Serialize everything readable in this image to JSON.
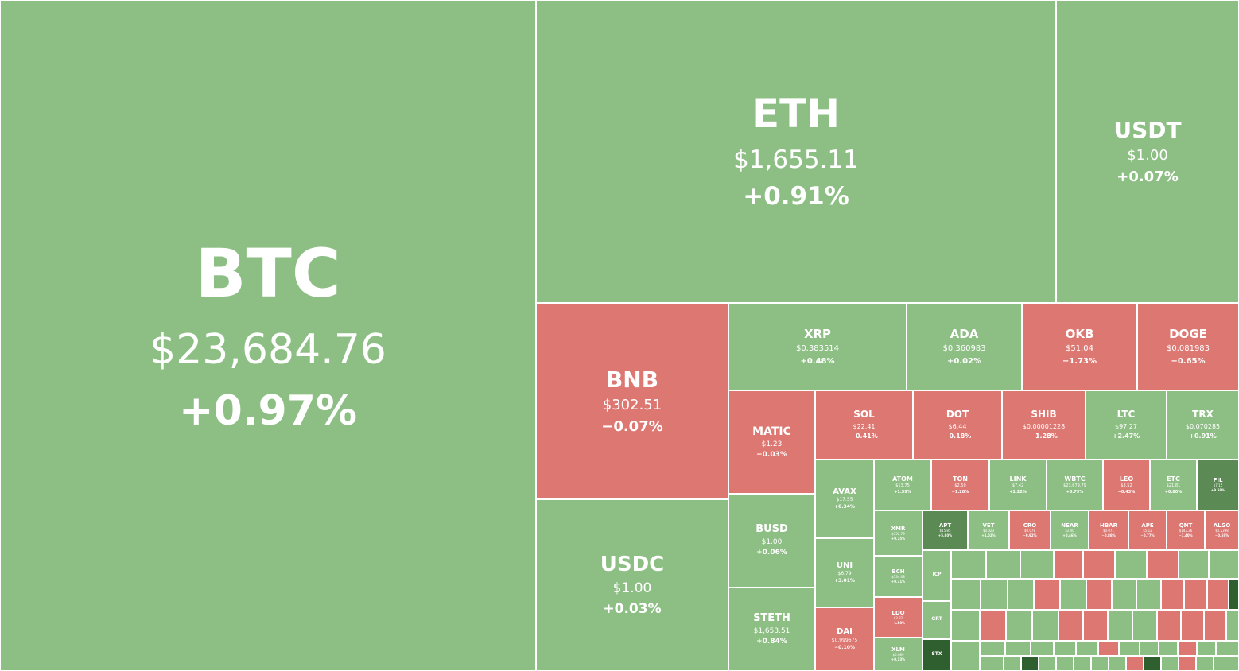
{
  "colors": {
    "up": "#8dbf84",
    "down": "#dd7772",
    "strong_up": "#5c8a55",
    "very_strong_up": "#2f5f2f"
  },
  "tiles": [
    {
      "symbol": "BTC",
      "price": "$23,684.76",
      "change": "+0.97%",
      "trend": "up"
    },
    {
      "symbol": "ETH",
      "price": "$1,655.11",
      "change": "+0.91%",
      "trend": "up"
    },
    {
      "symbol": "USDT",
      "price": "$1.00",
      "change": "+0.07%",
      "trend": "up"
    },
    {
      "symbol": "BNB",
      "price": "$302.51",
      "change": "−0.07%",
      "trend": "down"
    },
    {
      "symbol": "USDC",
      "price": "$1.00",
      "change": "+0.03%",
      "trend": "up"
    },
    {
      "symbol": "XRP",
      "price": "$0.383514",
      "change": "+0.48%",
      "trend": "up"
    },
    {
      "symbol": "ADA",
      "price": "$0.360983",
      "change": "+0.02%",
      "trend": "up"
    },
    {
      "symbol": "OKB",
      "price": "$51.04",
      "change": "−1.73%",
      "trend": "down"
    },
    {
      "symbol": "DOGE",
      "price": "$0.081983",
      "change": "−0.65%",
      "trend": "down"
    },
    {
      "symbol": "MATIC",
      "price": "$1.23",
      "change": "−0.03%",
      "trend": "down"
    },
    {
      "symbol": "SOL",
      "price": "$22.41",
      "change": "−0.41%",
      "trend": "down"
    },
    {
      "symbol": "DOT",
      "price": "$6.44",
      "change": "−0.18%",
      "trend": "down"
    },
    {
      "symbol": "SHIB",
      "price": "$0.00001228",
      "change": "−1.28%",
      "trend": "down"
    },
    {
      "symbol": "LTC",
      "price": "$97.27",
      "change": "+2.47%",
      "trend": "up"
    },
    {
      "symbol": "TRX",
      "price": "$0.070285",
      "change": "+0.91%",
      "trend": "up"
    },
    {
      "symbol": "BUSD",
      "price": "$1.00",
      "change": "+0.06%",
      "trend": "up"
    },
    {
      "symbol": "STETH",
      "price": "$1,653.51",
      "change": "+0.84%",
      "trend": "up"
    },
    {
      "symbol": "AVAX",
      "price": "$17.55",
      "change": "+0.34%",
      "trend": "up"
    },
    {
      "symbol": "UNI",
      "price": "$6.79",
      "change": "+3.01%",
      "trend": "up"
    },
    {
      "symbol": "DAI",
      "price": "$0.999675",
      "change": "−0.10%",
      "trend": "down"
    },
    {
      "symbol": "ATOM",
      "price": "$13.75",
      "change": "+1.59%",
      "trend": "up"
    },
    {
      "symbol": "TON",
      "price": "$2.50",
      "change": "−1.28%",
      "trend": "down"
    },
    {
      "symbol": "LINK",
      "price": "$7.42",
      "change": "+1.22%",
      "trend": "up"
    },
    {
      "symbol": "WBTC",
      "price": "$23,679.79",
      "change": "+0.79%",
      "trend": "up"
    },
    {
      "symbol": "LEO",
      "price": "$3.52",
      "change": "−0.43%",
      "trend": "down"
    },
    {
      "symbol": "ETC",
      "price": "$21.81",
      "change": "+0.80%",
      "trend": "up"
    },
    {
      "symbol": "FIL",
      "price": "$7.15",
      "change": "+9.58%",
      "trend": "strong_up"
    },
    {
      "symbol": "XMR",
      "price": "$152.79",
      "change": "+0.75%",
      "trend": "up"
    },
    {
      "symbol": "BCH",
      "price": "$134.08",
      "change": "+0.71%",
      "trend": "up"
    },
    {
      "symbol": "LDO",
      "price": "$3.32",
      "change": "−1.58%",
      "trend": "down"
    },
    {
      "symbol": "XLM",
      "price": "$0.089",
      "change": "+0.13%",
      "trend": "up"
    },
    {
      "symbol": "APT",
      "price": "$15.85",
      "change": "+5.80%",
      "trend": "strong_up"
    },
    {
      "symbol": "VET",
      "price": "$0.023",
      "change": "+1.02%",
      "trend": "up"
    },
    {
      "symbol": "CRO",
      "price": "$0.078",
      "change": "−0.92%",
      "trend": "down"
    },
    {
      "symbol": "NEAR",
      "price": "$2.40",
      "change": "+0.46%",
      "trend": "up"
    },
    {
      "symbol": "HBAR",
      "price": "$0.071",
      "change": "−0.88%",
      "trend": "down"
    },
    {
      "symbol": "APE",
      "price": "$5.12",
      "change": "−0.77%",
      "trend": "down"
    },
    {
      "symbol": "QNT",
      "price": "$143.36",
      "change": "−1.40%",
      "trend": "down"
    },
    {
      "symbol": "ALGO",
      "price": "$0.2398",
      "change": "−0.58%",
      "trend": "down"
    },
    {
      "symbol": "ICP",
      "price": "",
      "change": "",
      "trend": "up"
    },
    {
      "symbol": "GRT",
      "price": "",
      "change": "",
      "trend": "up"
    },
    {
      "symbol": "STX",
      "price": "",
      "change": "",
      "trend": "very_strong_up"
    }
  ]
}
